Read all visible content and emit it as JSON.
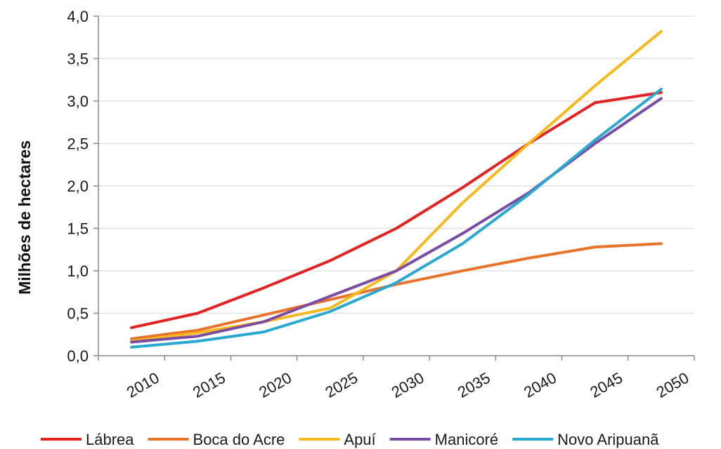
{
  "chart_data": {
    "type": "line",
    "title": "",
    "xlabel": "",
    "ylabel": "Milhões de hectares",
    "x": [
      "2010",
      "2015",
      "2020",
      "2025",
      "2030",
      "2035",
      "2040",
      "2045",
      "2050"
    ],
    "ylim": [
      0,
      4
    ],
    "yticks": [
      "0,0",
      "0,5",
      "1,0",
      "1,5",
      "2,0",
      "2,5",
      "3,0",
      "3,5",
      "4,0"
    ],
    "grid": true,
    "legend": "bottom",
    "series": [
      {
        "name": "Lábrea",
        "color": "#e32222",
        "values": [
          0.33,
          0.5,
          0.8,
          1.12,
          1.5,
          1.98,
          2.5,
          2.98,
          3.1
        ]
      },
      {
        "name": "Boca do Acre",
        "color": "#e8732a",
        "values": [
          0.2,
          0.3,
          0.48,
          0.66,
          0.84,
          1.0,
          1.15,
          1.28,
          1.32
        ]
      },
      {
        "name": "Apuí",
        "color": "#f6b91e",
        "values": [
          0.17,
          0.27,
          0.4,
          0.56,
          1.0,
          1.8,
          2.5,
          3.18,
          3.82
        ]
      },
      {
        "name": "Manicoré",
        "color": "#7a4ca3",
        "values": [
          0.16,
          0.23,
          0.4,
          0.7,
          1.0,
          1.44,
          1.92,
          2.5,
          3.03
        ]
      },
      {
        "name": "Novo Aripuanã",
        "color": "#2aa8cf",
        "values": [
          0.1,
          0.17,
          0.28,
          0.52,
          0.86,
          1.32,
          1.9,
          2.54,
          3.14
        ]
      }
    ]
  }
}
